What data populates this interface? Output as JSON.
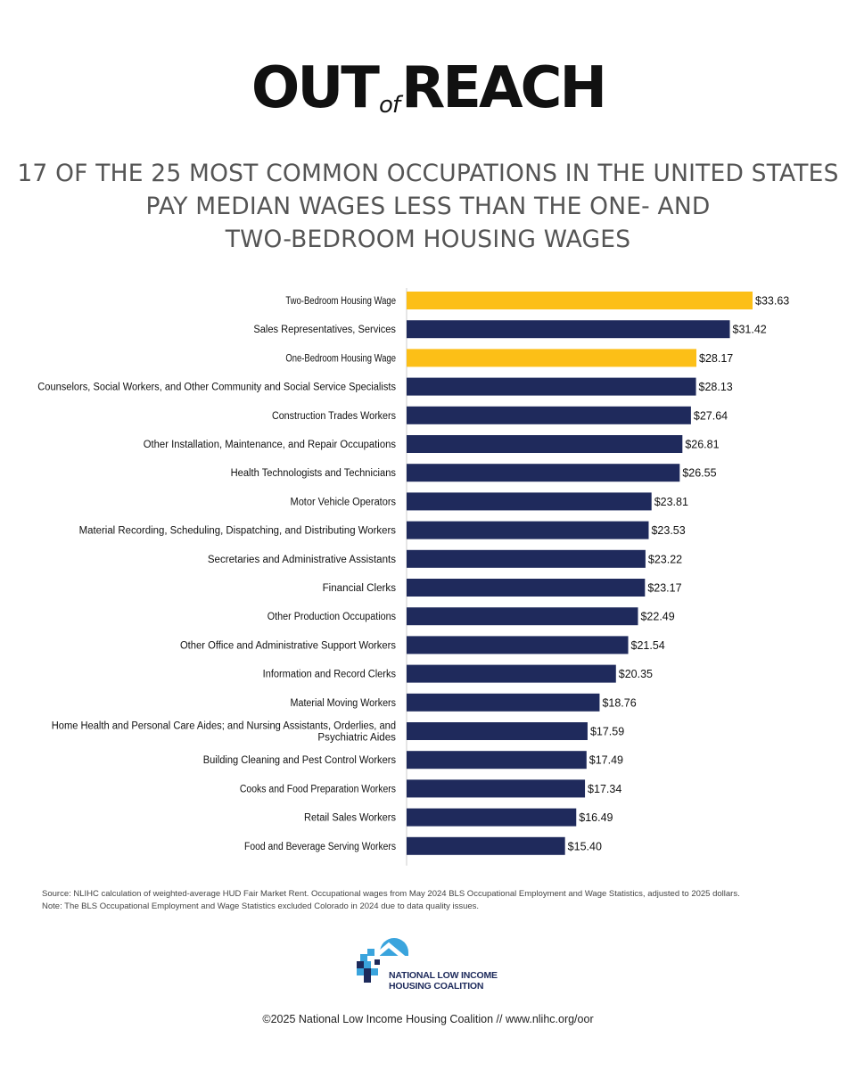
{
  "brand": {
    "part1": "OUT",
    "part2": "of",
    "part3": "REACH"
  },
  "headline": {
    "line1": "17 OF THE 25 MOST COMMON OCCUPATIONS IN THE UNITED STATES",
    "line2": "PAY MEDIAN WAGES LESS THAN THE ONE- AND",
    "line3": "TWO-BEDROOM HOUSING WAGES"
  },
  "chart_data": {
    "type": "bar",
    "orientation": "horizontal",
    "title": "17 OF THE 25 MOST COMMON OCCUPATIONS IN THE UNITED STATES PAY MEDIAN WAGES LESS THAN THE ONE- AND TWO-BEDROOM HOUSING WAGES",
    "xlabel": "",
    "ylabel": "",
    "xlim": [
      0,
      33.63
    ],
    "grid": false,
    "value_prefix": "$",
    "colors": {
      "housing_wage": "#fcbf17",
      "occupation": "#1f2a5c"
    },
    "categories": [
      "Two-Bedroom Housing Wage",
      "Sales Representatives, Services",
      "One-Bedroom Housing Wage",
      "Counselors, Social Workers, and Other Community and Social Service Specialists",
      "Construction Trades Workers",
      "Other Installation, Maintenance, and Repair Occupations",
      "Health Technologists and Technicians",
      "Motor Vehicle Operators",
      "Material Recording, Scheduling, Dispatching, and Distributing Workers",
      "Secretaries and Administrative Assistants",
      "Financial Clerks",
      "Other Production Occupations",
      "Other Office and Administrative Support Workers",
      "Information and Record Clerks",
      "Material Moving Workers",
      "Home Health and Personal Care Aides; and Nursing Assistants, Orderlies, and Psychiatric Aides",
      "Building Cleaning and Pest Control Workers",
      "Cooks and Food Preparation Workers",
      "Retail Sales Workers",
      "Food and Beverage Serving Workers"
    ],
    "values": [
      33.63,
      31.42,
      28.17,
      28.13,
      27.64,
      26.81,
      26.55,
      23.81,
      23.53,
      23.22,
      23.17,
      22.49,
      21.54,
      20.35,
      18.76,
      17.59,
      17.49,
      17.34,
      16.49,
      15.4
    ],
    "value_labels": [
      "$33.63",
      "$31.42",
      "$28.17",
      "$28.13",
      "$27.64",
      "$26.81",
      "$26.55",
      "$23.81",
      "$23.53",
      "$23.22",
      "$23.17",
      "$22.49",
      "$21.54",
      "$20.35",
      "$18.76",
      "$17.59",
      "$17.49",
      "$17.34",
      "$16.49",
      "$15.40"
    ],
    "highlight": [
      true,
      false,
      true,
      false,
      false,
      false,
      false,
      false,
      false,
      false,
      false,
      false,
      false,
      false,
      false,
      false,
      false,
      false,
      false,
      false
    ]
  },
  "footnote": {
    "source": "Source: NLIHC calculation of weighted-average HUD Fair Market Rent. Occupational wages from May 2024 BLS Occupational Employment and Wage Statistics, adjusted to 2025 dollars.",
    "note": "Note: The BLS Occupational Employment and Wage Statistics excluded Colorado in 2024 due to data quality issues."
  },
  "logo": {
    "line1": "NATIONAL LOW INCOME",
    "line2": "HOUSING COALITION"
  },
  "copyright": "©2025 National Low Income Housing Coalition // www.nlihc.org/oor"
}
